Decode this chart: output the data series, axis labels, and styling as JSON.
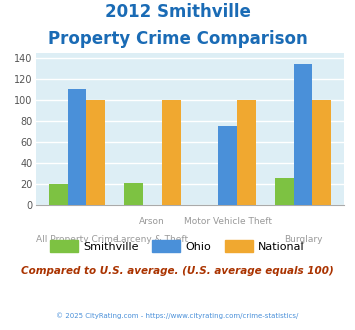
{
  "title_line1": "2012 Smithville",
  "title_line2": "Property Crime Comparison",
  "title_color": "#1a6bb5",
  "title_fontsize": 12,
  "smithville": [
    20,
    21,
    0,
    25
  ],
  "ohio": [
    110,
    0,
    75,
    134
  ],
  "national": [
    100,
    100,
    100,
    100
  ],
  "smithville_color": "#7dc242",
  "ohio_color": "#4a90d9",
  "national_color": "#f0a830",
  "bg_color": "#ddeef5",
  "ylim": [
    0,
    145
  ],
  "yticks": [
    0,
    20,
    40,
    60,
    80,
    100,
    120,
    140
  ],
  "legend_labels": [
    "Smithville",
    "Ohio",
    "National"
  ],
  "note_text": "Compared to U.S. average. (U.S. average equals 100)",
  "note_color": "#aa3300",
  "copyright_text": "© 2025 CityRating.com - https://www.cityrating.com/crime-statistics/",
  "copyright_color": "#4a90d9",
  "grid_color": "#ffffff",
  "bar_width": 0.25,
  "top_row_labels": [
    [
      "Arson",
      1
    ],
    [
      "Motor Vehicle Theft",
      2
    ]
  ],
  "bottom_row_labels": [
    [
      "All Property Crime",
      0
    ],
    [
      "Larceny & Theft",
      1
    ],
    [
      "Burglary",
      3
    ]
  ]
}
